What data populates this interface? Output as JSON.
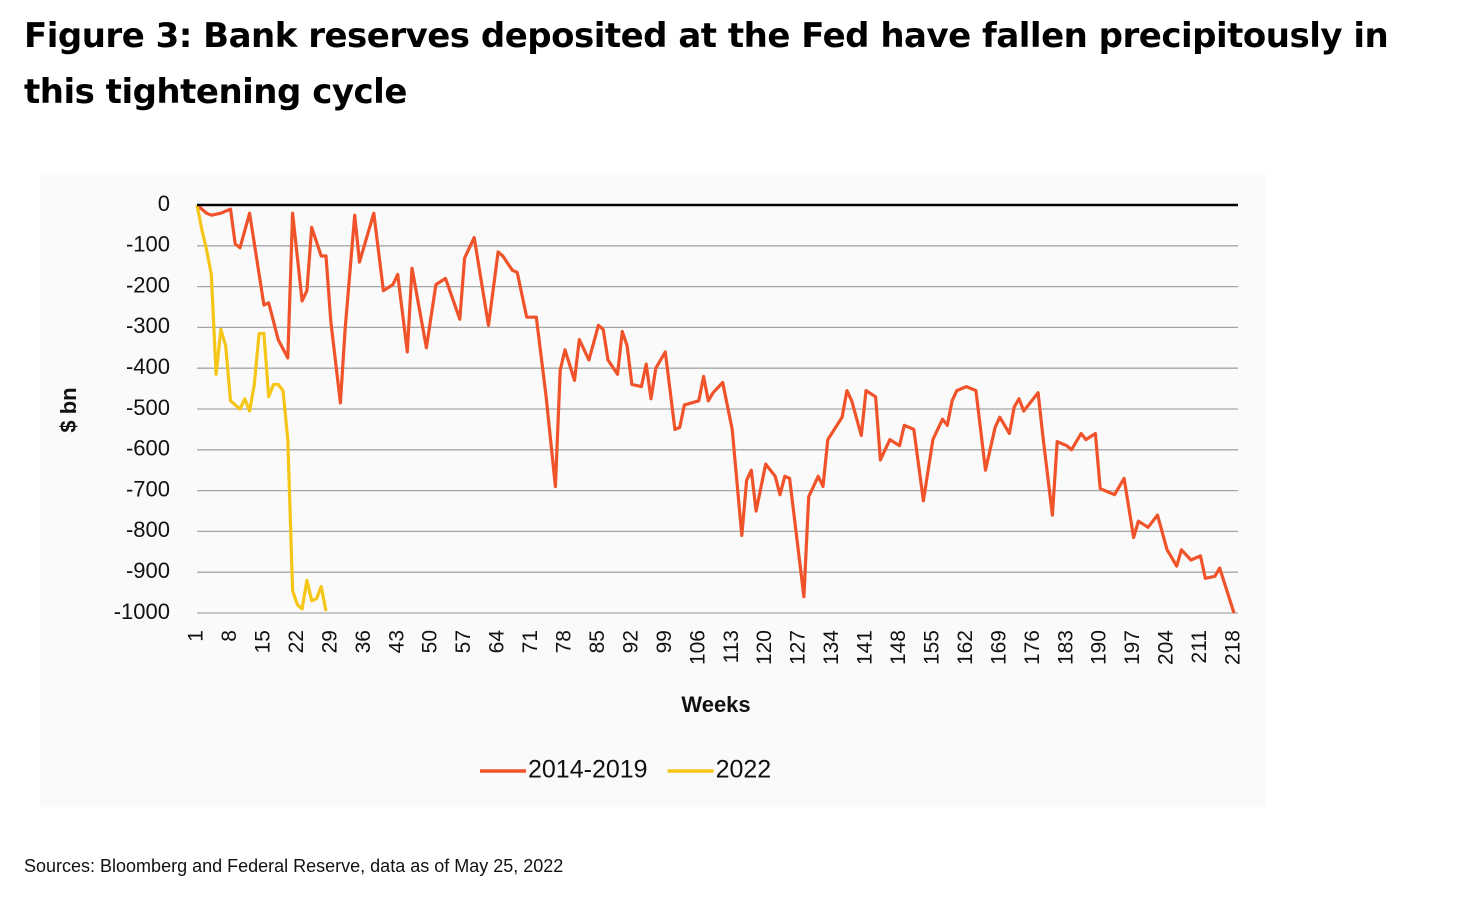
{
  "chart_data": {
    "type": "line",
    "title": "Figure 3: Bank reserves deposited at the Fed have fallen precipitously in this tightening cycle",
    "source": "Sources: Bloomberg and Federal Reserve, data as of May 25, 2022",
    "xlabel": "Weeks",
    "ylabel": "$ bn",
    "xlim": [
      1,
      218
    ],
    "xticks": [
      1,
      8,
      15,
      22,
      29,
      36,
      43,
      50,
      57,
      64,
      71,
      78,
      85,
      92,
      99,
      106,
      113,
      120,
      127,
      134,
      141,
      148,
      155,
      162,
      169,
      176,
      183,
      190,
      197,
      204,
      211,
      218
    ],
    "ylim": [
      -1000,
      0
    ],
    "yticks": [
      0,
      -100,
      -200,
      -300,
      -400,
      -500,
      -600,
      -700,
      -800,
      -900,
      -1000
    ],
    "grid": true,
    "series": [
      {
        "name": "2014-2019",
        "color": "#f0532a",
        "x": [
          1,
          3,
          4,
          6,
          8,
          9,
          10,
          12,
          15,
          16,
          18,
          20,
          21,
          23,
          24,
          25,
          27,
          28,
          29,
          31,
          32,
          34,
          35,
          38,
          40,
          42,
          43,
          45,
          46,
          49,
          51,
          53,
          56,
          57,
          59,
          62,
          64,
          65,
          67,
          68,
          70,
          72,
          74,
          76,
          77,
          78,
          80,
          81,
          83,
          85,
          86,
          87,
          89,
          90,
          91,
          92,
          94,
          95,
          96,
          97,
          99,
          101,
          102,
          103,
          106,
          107,
          108,
          109,
          111,
          113,
          115,
          116,
          117,
          118,
          120,
          122,
          123,
          124,
          125,
          128,
          129,
          131,
          132,
          133,
          136,
          137,
          138,
          140,
          141,
          143,
          144,
          146,
          148,
          149,
          151,
          153,
          155,
          157,
          158,
          159,
          160,
          162,
          164,
          166,
          168,
          169,
          171,
          172,
          173,
          174,
          177,
          178,
          180,
          181,
          183,
          184,
          186,
          187,
          189,
          190,
          193,
          195,
          197,
          198,
          200,
          202,
          204,
          206,
          207,
          209,
          211,
          212,
          214,
          215,
          218
        ],
        "values": [
          0,
          -20,
          -25,
          -20,
          -10,
          -95,
          -105,
          -20,
          -245,
          -240,
          -330,
          -375,
          -20,
          -235,
          -210,
          -55,
          -125,
          -125,
          -285,
          -485,
          -305,
          -25,
          -140,
          -20,
          -210,
          -195,
          -170,
          -360,
          -155,
          -350,
          -195,
          -180,
          -280,
          -130,
          -80,
          -295,
          -115,
          -125,
          -160,
          -165,
          -275,
          -275,
          -465,
          -690,
          -405,
          -355,
          -430,
          -330,
          -380,
          -295,
          -305,
          -380,
          -415,
          -310,
          -345,
          -440,
          -445,
          -390,
          -475,
          -400,
          -360,
          -550,
          -545,
          -490,
          -480,
          -420,
          -480,
          -460,
          -435,
          -550,
          -810,
          -675,
          -650,
          -750,
          -635,
          -665,
          -710,
          -665,
          -670,
          -960,
          -715,
          -665,
          -690,
          -575,
          -520,
          -455,
          -480,
          -565,
          -455,
          -470,
          -625,
          -575,
          -590,
          -540,
          -550,
          -725,
          -575,
          -525,
          -540,
          -480,
          -455,
          -445,
          -455,
          -650,
          -545,
          -520,
          -560,
          -495,
          -475,
          -505,
          -460,
          -565,
          -760,
          -580,
          -590,
          -600,
          -560,
          -575,
          -560,
          -695,
          -710,
          -670,
          -815,
          -775,
          -790,
          -760,
          -845,
          -885,
          -845,
          -870,
          -860,
          -915,
          -910,
          -890,
          -1000
        ]
      },
      {
        "name": "2022",
        "color": "#f5c518",
        "x": [
          1,
          2,
          3,
          4,
          5,
          6,
          7,
          8,
          9,
          10,
          11,
          12,
          13,
          14,
          15,
          16,
          17,
          18,
          19,
          20,
          21,
          22,
          23,
          24,
          25,
          26,
          27,
          28
        ],
        "values": [
          0,
          -60,
          -110,
          -170,
          -415,
          -305,
          -345,
          -480,
          -490,
          -500,
          -475,
          -505,
          -440,
          -315,
          -315,
          -470,
          -440,
          -440,
          -455,
          -575,
          -945,
          -980,
          -990,
          -920,
          -970,
          -965,
          -935,
          -995
        ]
      }
    ]
  }
}
